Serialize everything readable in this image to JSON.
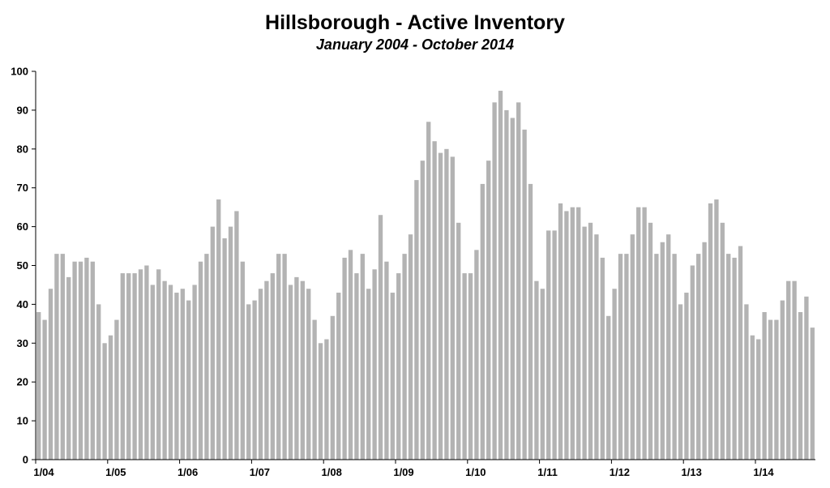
{
  "chart_data": {
    "type": "bar",
    "title": "Hillsborough - Active Inventory",
    "subtitle": "January 2004 - October 2014",
    "xlabel": "",
    "ylabel": "",
    "ylim": [
      0,
      100
    ],
    "yticks": [
      0,
      10,
      20,
      30,
      40,
      50,
      60,
      70,
      80,
      90,
      100
    ],
    "xtick_labels": [
      "1/04",
      "1/05",
      "1/06",
      "1/07",
      "1/08",
      "1/09",
      "1/10",
      "1/11",
      "1/12",
      "1/13",
      "1/14"
    ],
    "bar_color": "#b3b3b3",
    "grid": false,
    "categories": [
      "2004-01",
      "2004-02",
      "2004-03",
      "2004-04",
      "2004-05",
      "2004-06",
      "2004-07",
      "2004-08",
      "2004-09",
      "2004-10",
      "2004-11",
      "2004-12",
      "2005-01",
      "2005-02",
      "2005-03",
      "2005-04",
      "2005-05",
      "2005-06",
      "2005-07",
      "2005-08",
      "2005-09",
      "2005-10",
      "2005-11",
      "2005-12",
      "2006-01",
      "2006-02",
      "2006-03",
      "2006-04",
      "2006-05",
      "2006-06",
      "2006-07",
      "2006-08",
      "2006-09",
      "2006-10",
      "2006-11",
      "2006-12",
      "2007-01",
      "2007-02",
      "2007-03",
      "2007-04",
      "2007-05",
      "2007-06",
      "2007-07",
      "2007-08",
      "2007-09",
      "2007-10",
      "2007-11",
      "2007-12",
      "2008-01",
      "2008-02",
      "2008-03",
      "2008-04",
      "2008-05",
      "2008-06",
      "2008-07",
      "2008-08",
      "2008-09",
      "2008-10",
      "2008-11",
      "2008-12",
      "2009-01",
      "2009-02",
      "2009-03",
      "2009-04",
      "2009-05",
      "2009-06",
      "2009-07",
      "2009-08",
      "2009-09",
      "2009-10",
      "2009-11",
      "2009-12",
      "2010-01",
      "2010-02",
      "2010-03",
      "2010-04",
      "2010-05",
      "2010-06",
      "2010-07",
      "2010-08",
      "2010-09",
      "2010-10",
      "2010-11",
      "2010-12",
      "2011-01",
      "2011-02",
      "2011-03",
      "2011-04",
      "2011-05",
      "2011-06",
      "2011-07",
      "2011-08",
      "2011-09",
      "2011-10",
      "2011-11",
      "2011-12",
      "2012-01",
      "2012-02",
      "2012-03",
      "2012-04",
      "2012-05",
      "2012-06",
      "2012-07",
      "2012-08",
      "2012-09",
      "2012-10",
      "2012-11",
      "2012-12",
      "2013-01",
      "2013-02",
      "2013-03",
      "2013-04",
      "2013-05",
      "2013-06",
      "2013-07",
      "2013-08",
      "2013-09",
      "2013-10",
      "2013-11",
      "2013-12",
      "2014-01",
      "2014-02",
      "2014-03",
      "2014-04",
      "2014-05",
      "2014-06",
      "2014-07",
      "2014-08",
      "2014-09",
      "2014-10"
    ],
    "values": [
      38,
      36,
      44,
      53,
      53,
      47,
      51,
      51,
      52,
      51,
      40,
      30,
      32,
      36,
      48,
      48,
      48,
      49,
      50,
      45,
      49,
      46,
      45,
      43,
      44,
      41,
      45,
      51,
      53,
      60,
      67,
      57,
      60,
      64,
      51,
      40,
      41,
      44,
      46,
      48,
      53,
      53,
      45,
      47,
      46,
      44,
      36,
      30,
      31,
      37,
      43,
      52,
      54,
      48,
      53,
      44,
      49,
      63,
      51,
      43,
      48,
      53,
      58,
      72,
      77,
      87,
      82,
      79,
      80,
      78,
      61,
      48,
      48,
      54,
      71,
      77,
      92,
      95,
      90,
      88,
      92,
      85,
      71,
      46,
      44,
      59,
      59,
      66,
      64,
      65,
      65,
      60,
      61,
      58,
      52,
      37,
      44,
      53,
      53,
      58,
      65,
      65,
      61,
      53,
      56,
      58,
      53,
      40,
      43,
      50,
      53,
      56,
      66,
      67,
      61,
      53,
      52,
      55,
      40,
      32,
      31,
      38,
      36,
      36,
      41,
      46,
      46,
      38,
      42,
      34
    ]
  }
}
